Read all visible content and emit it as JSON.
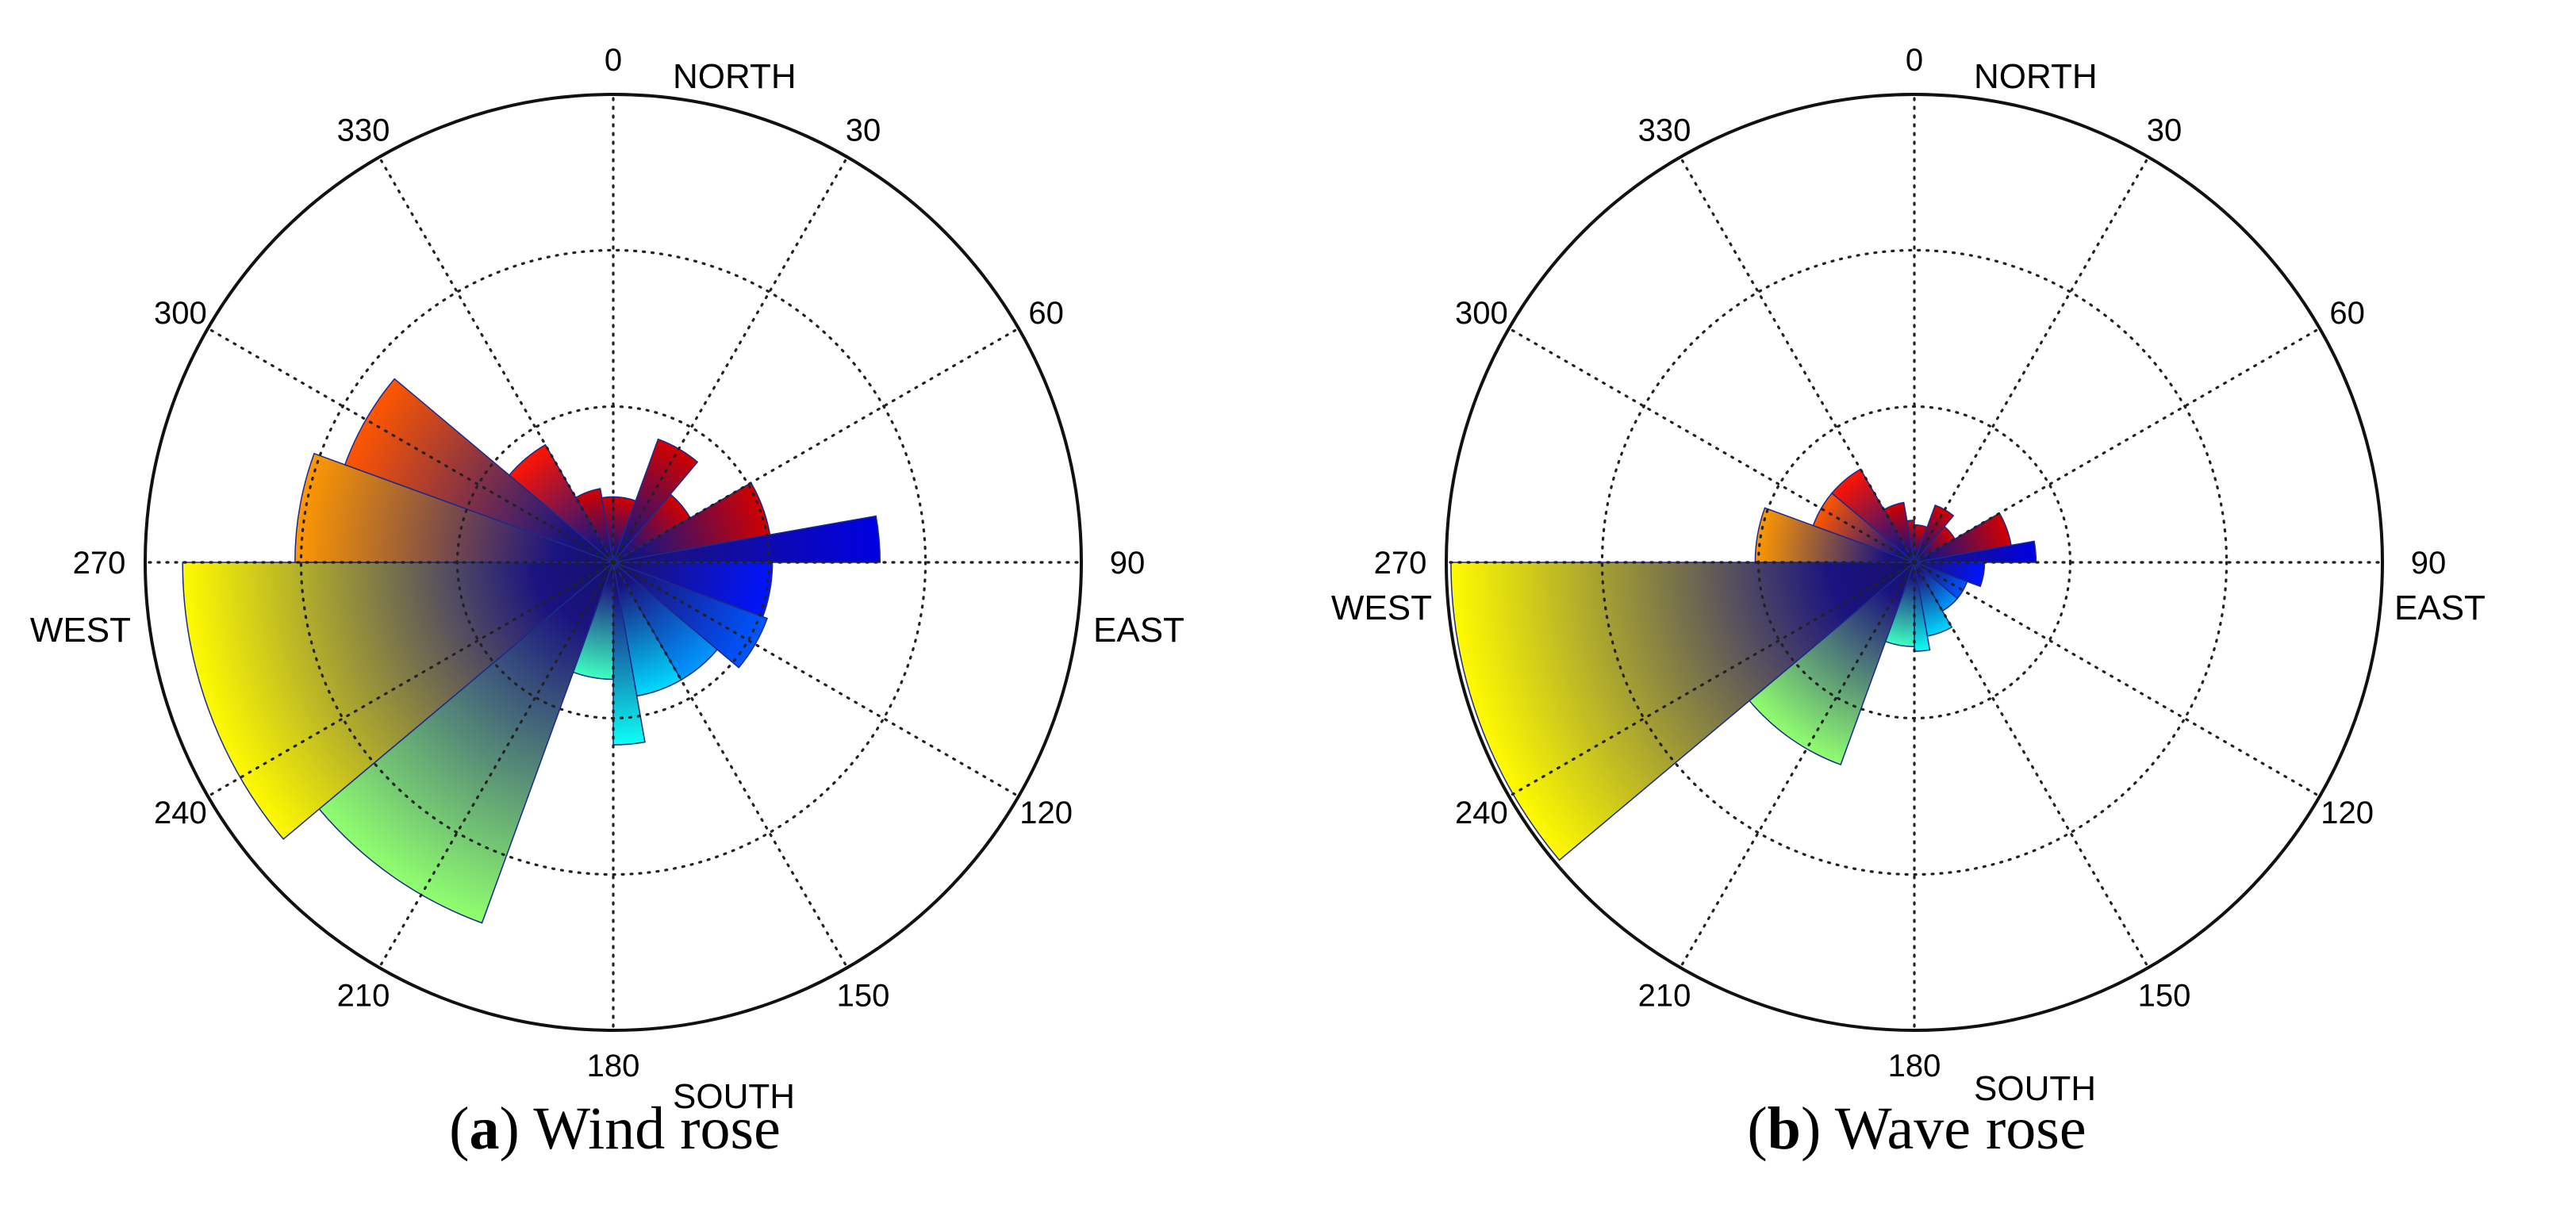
{
  "chart_data": [
    {
      "type": "polar-bar",
      "title": "Wind rose",
      "panel": {
        "letter": "a",
        "label": "Wind rose"
      },
      "angle_unit": "degrees",
      "angle_direction": "clockwise",
      "zero_location": "top",
      "angular_ticks": [
        "0",
        "30",
        "60",
        "90",
        "120",
        "150",
        "180",
        "210",
        "240",
        "270",
        "300",
        "330"
      ],
      "compass_labels": {
        "north": "NORTH",
        "east": "EAST",
        "south": "SOUTH",
        "west": "WEST"
      },
      "rmax": 100,
      "radial_grid": [
        33.3,
        66.7
      ],
      "sectors": [
        {
          "direction": 10,
          "from": 0,
          "to": 20,
          "value": 14
        },
        {
          "direction": 30,
          "from": 20,
          "to": 40,
          "value": 28
        },
        {
          "direction": 50,
          "from": 40,
          "to": 60,
          "value": 19
        },
        {
          "direction": 70,
          "from": 60,
          "to": 80,
          "value": 34
        },
        {
          "direction": 85,
          "from": 80,
          "to": 90,
          "value": 57
        },
        {
          "direction": 100,
          "from": 90,
          "to": 110,
          "value": 34
        },
        {
          "direction": 120,
          "from": 110,
          "to": 130,
          "value": 35
        },
        {
          "direction": 140,
          "from": 130,
          "to": 150,
          "value": 29
        },
        {
          "direction": 160,
          "from": 150,
          "to": 170,
          "value": 29
        },
        {
          "direction": 175,
          "from": 170,
          "to": 180,
          "value": 39
        },
        {
          "direction": 190,
          "from": 180,
          "to": 200,
          "value": 25
        },
        {
          "direction": 215,
          "from": 200,
          "to": 230,
          "value": 82
        },
        {
          "direction": 250,
          "from": 230,
          "to": 270,
          "value": 92
        },
        {
          "direction": 280,
          "from": 270,
          "to": 290,
          "value": 68
        },
        {
          "direction": 300,
          "from": 290,
          "to": 310,
          "value": 61
        },
        {
          "direction": 320,
          "from": 310,
          "to": 330,
          "value": 29
        },
        {
          "direction": 340,
          "from": 330,
          "to": 350,
          "value": 16
        },
        {
          "direction": 355,
          "from": 350,
          "to": 360,
          "value": 14
        }
      ]
    },
    {
      "type": "polar-bar",
      "title": "Wave rose",
      "panel": {
        "letter": "b",
        "label": "Wave rose"
      },
      "angle_unit": "degrees",
      "angle_direction": "clockwise",
      "zero_location": "top",
      "angular_ticks": [
        "0",
        "30",
        "60",
        "90",
        "120",
        "150",
        "180",
        "210",
        "240",
        "270",
        "300",
        "330"
      ],
      "compass_labels": {
        "north": "NORTH",
        "east": "EAST",
        "south": "SOUTH",
        "west": "WEST"
      },
      "rmax": 100,
      "radial_grid": [
        33.3,
        66.7
      ],
      "sectors": [
        {
          "direction": 10,
          "from": 0,
          "to": 20,
          "value": 8
        },
        {
          "direction": 30,
          "from": 20,
          "to": 40,
          "value": 13
        },
        {
          "direction": 50,
          "from": 40,
          "to": 60,
          "value": 10
        },
        {
          "direction": 70,
          "from": 60,
          "to": 80,
          "value": 21
        },
        {
          "direction": 85,
          "from": 80,
          "to": 90,
          "value": 26
        },
        {
          "direction": 100,
          "from": 90,
          "to": 110,
          "value": 15
        },
        {
          "direction": 120,
          "from": 110,
          "to": 130,
          "value": 12
        },
        {
          "direction": 140,
          "from": 130,
          "to": 150,
          "value": 12
        },
        {
          "direction": 160,
          "from": 150,
          "to": 170,
          "value": 16
        },
        {
          "direction": 175,
          "from": 170,
          "to": 180,
          "value": 19
        },
        {
          "direction": 190,
          "from": 180,
          "to": 200,
          "value": 18
        },
        {
          "direction": 215,
          "from": 200,
          "to": 230,
          "value": 46
        },
        {
          "direction": 250,
          "from": 230,
          "to": 270,
          "value": 99
        },
        {
          "direction": 280,
          "from": 270,
          "to": 290,
          "value": 34
        },
        {
          "direction": 300,
          "from": 290,
          "to": 310,
          "value": 23
        },
        {
          "direction": 320,
          "from": 310,
          "to": 330,
          "value": 23
        },
        {
          "direction": 340,
          "from": 330,
          "to": 350,
          "value": 13
        },
        {
          "direction": 355,
          "from": 350,
          "to": 360,
          "value": 9
        }
      ]
    }
  ]
}
